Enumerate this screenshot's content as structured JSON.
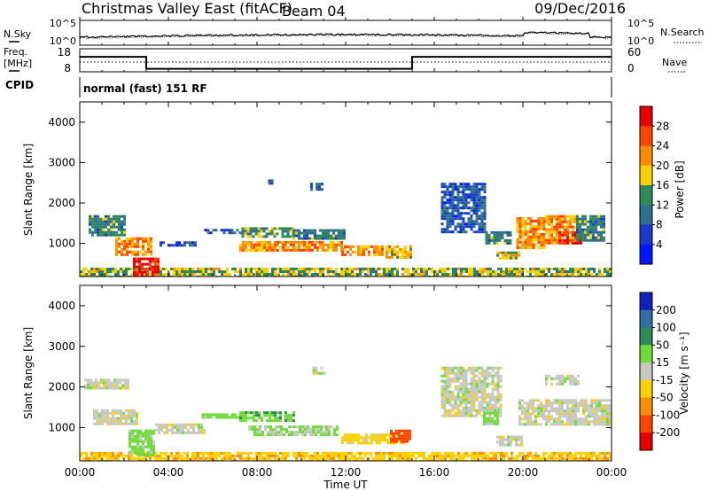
{
  "header": {
    "title": "Christmas Valley East (fitACF)",
    "beam": "Beam 04",
    "date": "09/Dec/2016"
  },
  "noise_panel": {
    "left_label": "N.Sky",
    "right_label": "N.Search",
    "ticks_left": [
      "10^5",
      "10^0"
    ],
    "ticks_right": [
      "10^5",
      "10^0"
    ]
  },
  "freq_panel": {
    "left_label_1": "Freq.",
    "left_label_2": "[MHz]",
    "right_label": "Nave",
    "ticks_left": [
      "18",
      "8"
    ],
    "ticks_right": [
      "60",
      "0"
    ],
    "cpid_label": "CPID",
    "cpid_value": "normal (fast) 151 RF",
    "freq_steps": [
      {
        "t": 0,
        "f": 14.5
      },
      {
        "t": 3.0,
        "f": 14.5
      },
      {
        "t": 3.0,
        "f": 9.3
      },
      {
        "t": 15.0,
        "f": 9.3
      },
      {
        "t": 15.0,
        "f": 14.5
      },
      {
        "t": 24,
        "f": 14.5
      }
    ],
    "nave_level": 12
  },
  "power_panel": {
    "ylabel": "Slant Range [km]",
    "cbar_label": "Power [dB]",
    "cbar_ticks": [
      "28",
      "24",
      "20",
      "16",
      "12",
      "8",
      "4"
    ],
    "cbar_colors": [
      "#e60000",
      "#ff4400",
      "#ff8c00",
      "#ffd000",
      "#2e8b57",
      "#2e6e90",
      "#1a3ccc",
      "#0018ff"
    ]
  },
  "velocity_panel": {
    "ylabel": "Slant Range [km]",
    "cbar_label": "Velocity [m s⁻¹]",
    "cbar_ticks": [
      "200",
      "100",
      "50",
      "15",
      "-15",
      "-50",
      "-100",
      "-200"
    ],
    "cbar_colors": [
      "#1020c0",
      "#2e6ea0",
      "#2e8b57",
      "#6fdc3a",
      "#c8c8c0",
      "#ffd000",
      "#ff8c00",
      "#ff4400",
      "#e60000"
    ]
  },
  "xaxis": {
    "label": "Time UT",
    "ticks": [
      "00:00",
      "04:00",
      "08:00",
      "12:00",
      "16:00",
      "20:00",
      "00:00"
    ]
  },
  "chart_data": {
    "type": "heatmap",
    "x_unit": "hours UT",
    "xlim": [
      0,
      24
    ],
    "ylim": [
      180,
      4500
    ],
    "yticks": [
      1000,
      2000,
      3000,
      4000
    ],
    "power_regions": [
      {
        "t0": 0.0,
        "t1": 24.0,
        "r0": 200,
        "r1": 400,
        "level": 16
      },
      {
        "t0": 0.4,
        "t1": 2.0,
        "r0": 1200,
        "r1": 1700,
        "level": 12
      },
      {
        "t0": 1.6,
        "t1": 3.2,
        "r0": 700,
        "r1": 1150,
        "level": 22
      },
      {
        "t0": 2.4,
        "t1": 3.6,
        "r0": 220,
        "r1": 650,
        "level": 28
      },
      {
        "t0": 3.6,
        "t1": 5.2,
        "r0": 950,
        "r1": 1050,
        "level": 8
      },
      {
        "t0": 5.5,
        "t1": 7.2,
        "r0": 1280,
        "r1": 1360,
        "level": 8
      },
      {
        "t0": 7.3,
        "t1": 9.6,
        "r0": 1200,
        "r1": 1400,
        "level": 14
      },
      {
        "t0": 7.2,
        "t1": 11.8,
        "r0": 820,
        "r1": 1060,
        "level": 22
      },
      {
        "t0": 9.6,
        "t1": 12.0,
        "r0": 1150,
        "r1": 1350,
        "level": 12
      },
      {
        "t0": 11.8,
        "t1": 13.7,
        "r0": 700,
        "r1": 950,
        "level": 22
      },
      {
        "t0": 13.8,
        "t1": 14.9,
        "r0": 650,
        "r1": 950,
        "level": 20
      },
      {
        "t0": 10.4,
        "t1": 11.0,
        "r0": 2350,
        "r1": 2500,
        "level": 8
      },
      {
        "t0": 8.5,
        "t1": 8.7,
        "r0": 2450,
        "r1": 2650,
        "level": 10
      },
      {
        "t0": 16.3,
        "t1": 18.3,
        "r0": 1300,
        "r1": 2500,
        "level": 8
      },
      {
        "t0": 18.3,
        "t1": 19.4,
        "r0": 1000,
        "r1": 1300,
        "level": 12
      },
      {
        "t0": 18.8,
        "t1": 19.8,
        "r0": 650,
        "r1": 800,
        "level": 18
      },
      {
        "t0": 19.7,
        "t1": 21.0,
        "r0": 900,
        "r1": 1650,
        "level": 22
      },
      {
        "t0": 21.0,
        "t1": 22.4,
        "r0": 1000,
        "r1": 1700,
        "level": 22
      },
      {
        "t0": 21.6,
        "t1": 22.6,
        "r0": 1000,
        "r1": 1300,
        "level": 28
      },
      {
        "t0": 22.4,
        "t1": 23.6,
        "r0": 1100,
        "r1": 1700,
        "level": 12
      }
    ],
    "velocity_regions": [
      {
        "t0": 0.0,
        "t1": 24.0,
        "r0": 200,
        "r1": 400,
        "value": -40
      },
      {
        "t0": 0.2,
        "t1": 2.2,
        "r0": 2000,
        "r1": 2200,
        "value": 0
      },
      {
        "t0": 0.6,
        "t1": 2.6,
        "r0": 1100,
        "r1": 1450,
        "value": 0
      },
      {
        "t0": 2.2,
        "t1": 3.3,
        "r0": 300,
        "r1": 950,
        "value": 30
      },
      {
        "t0": 3.4,
        "t1": 5.6,
        "r0": 850,
        "r1": 1100,
        "value": 0
      },
      {
        "t0": 5.5,
        "t1": 7.2,
        "r0": 1250,
        "r1": 1350,
        "value": 30
      },
      {
        "t0": 7.2,
        "t1": 9.7,
        "r0": 1150,
        "r1": 1400,
        "value": 40
      },
      {
        "t0": 7.6,
        "t1": 11.6,
        "r0": 850,
        "r1": 1050,
        "value": 20
      },
      {
        "t0": 10.5,
        "t1": 11.1,
        "r0": 2350,
        "r1": 2500,
        "value": 0
      },
      {
        "t0": 11.8,
        "t1": 14.6,
        "r0": 600,
        "r1": 850,
        "value": -30
      },
      {
        "t0": 14.0,
        "t1": 14.9,
        "r0": 650,
        "r1": 950,
        "value": -120
      },
      {
        "t0": 16.3,
        "t1": 19.0,
        "r0": 1300,
        "r1": 2500,
        "value": 0
      },
      {
        "t0": 18.2,
        "t1": 18.9,
        "r0": 1100,
        "r1": 1450,
        "value": 30
      },
      {
        "t0": 18.8,
        "t1": 20.0,
        "r0": 600,
        "r1": 800,
        "value": 0
      },
      {
        "t0": 19.8,
        "t1": 24.0,
        "r0": 1100,
        "r1": 1700,
        "value": 0
      },
      {
        "t0": 21.0,
        "t1": 22.5,
        "r0": 2050,
        "r1": 2300,
        "value": 0
      }
    ]
  }
}
